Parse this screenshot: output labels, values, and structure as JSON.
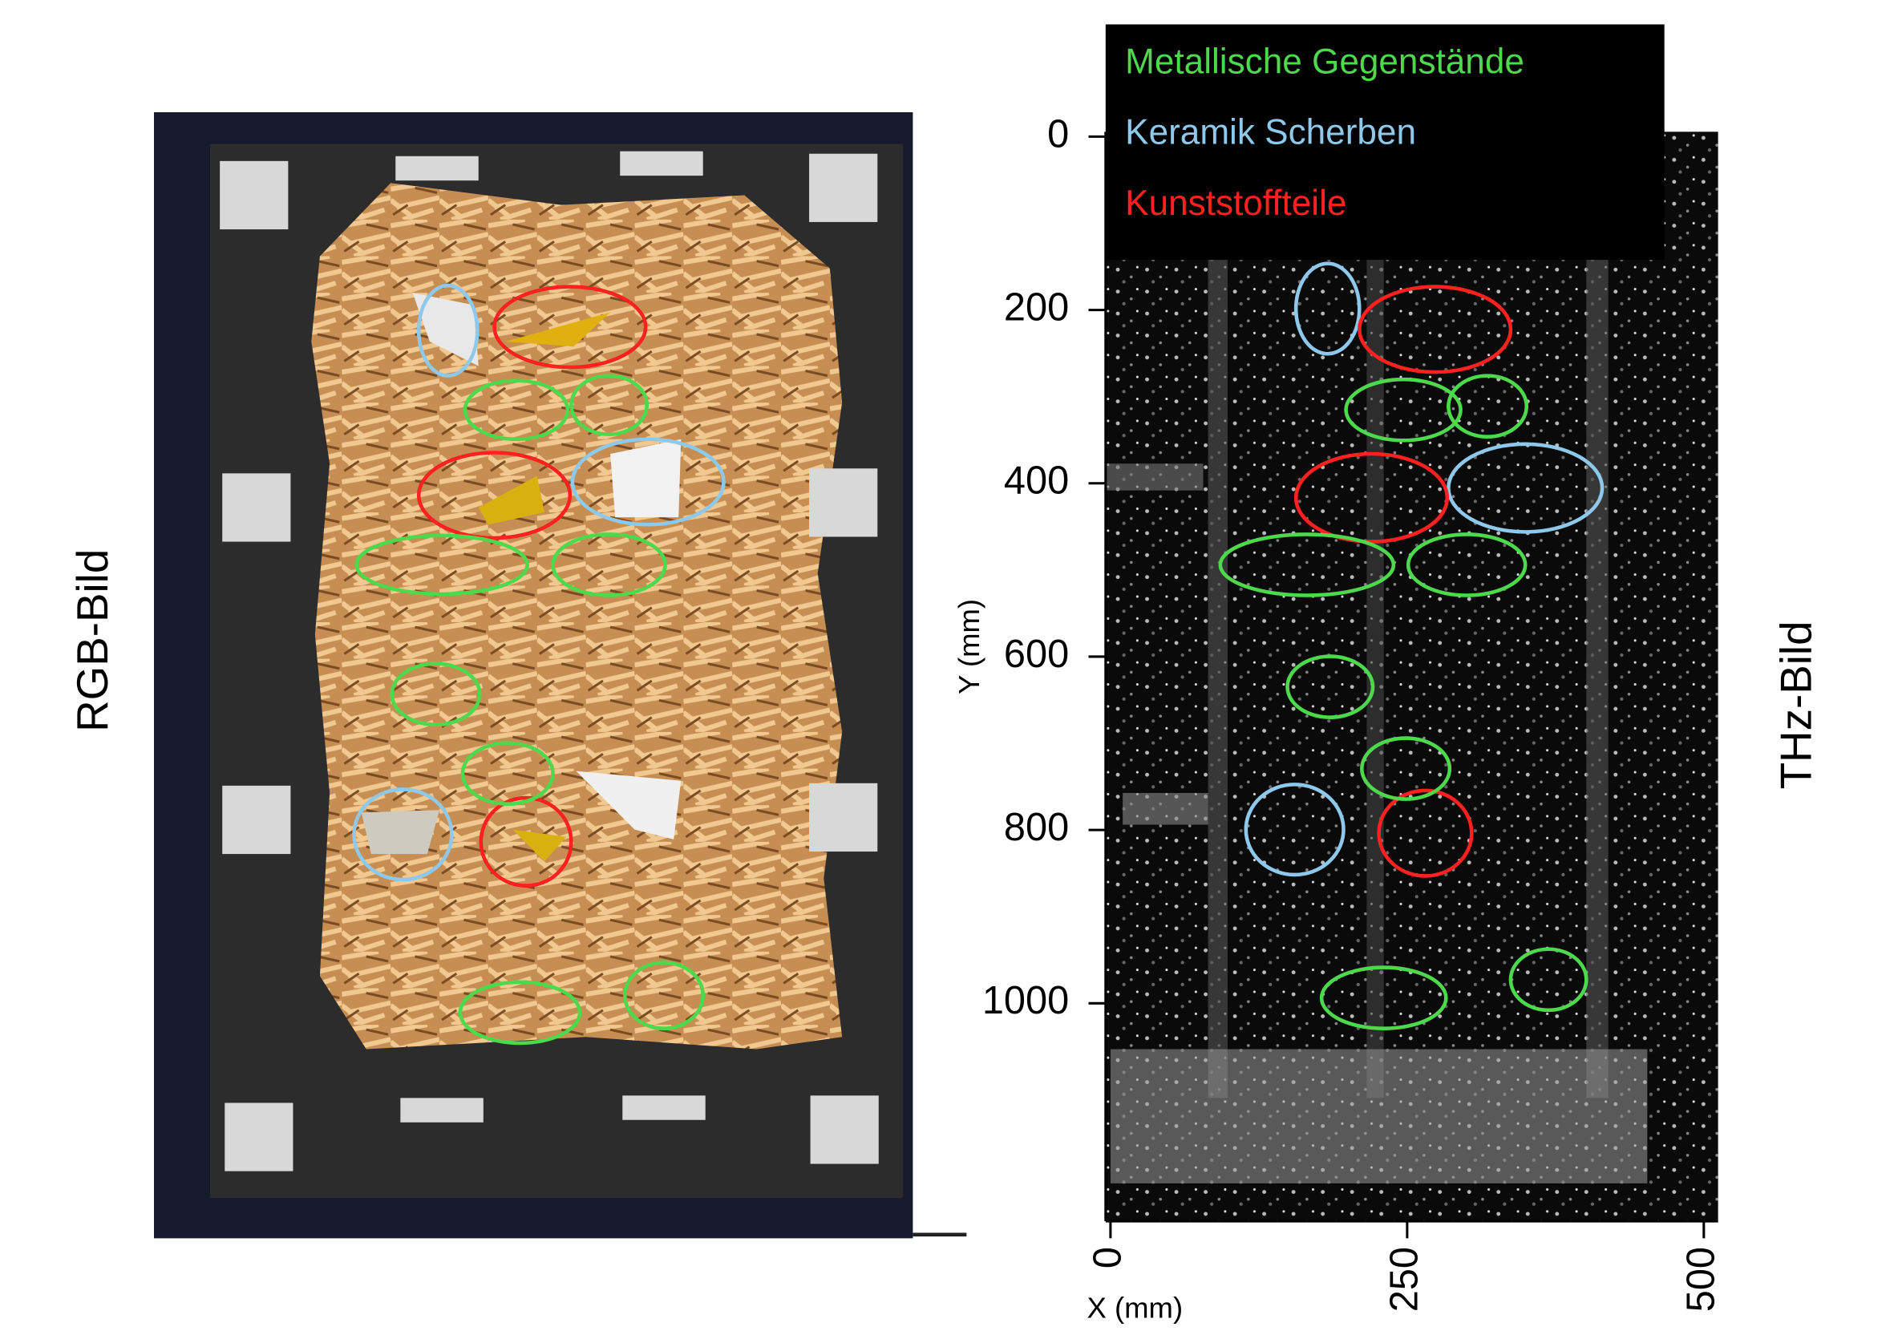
{
  "left_panel": {
    "label": "RGB-Bild"
  },
  "right_panel": {
    "label": "THz-Bild",
    "legend": [
      {
        "label": "Metallische Gegenstände",
        "color": "#4cd94c"
      },
      {
        "label": "Keramik Scherben",
        "color": "#8ec8ea"
      },
      {
        "label": "Kunststoffteile",
        "color": "#ff2020"
      }
    ],
    "y_axis": {
      "label": "Y (mm)",
      "lim": [
        0,
        1250
      ],
      "ticks": [
        0,
        200,
        400,
        600,
        800,
        1000
      ]
    },
    "x_axis": {
      "label": "X (mm)",
      "lim": [
        0,
        511
      ],
      "ticks": [
        0,
        250,
        500
      ]
    }
  }
}
